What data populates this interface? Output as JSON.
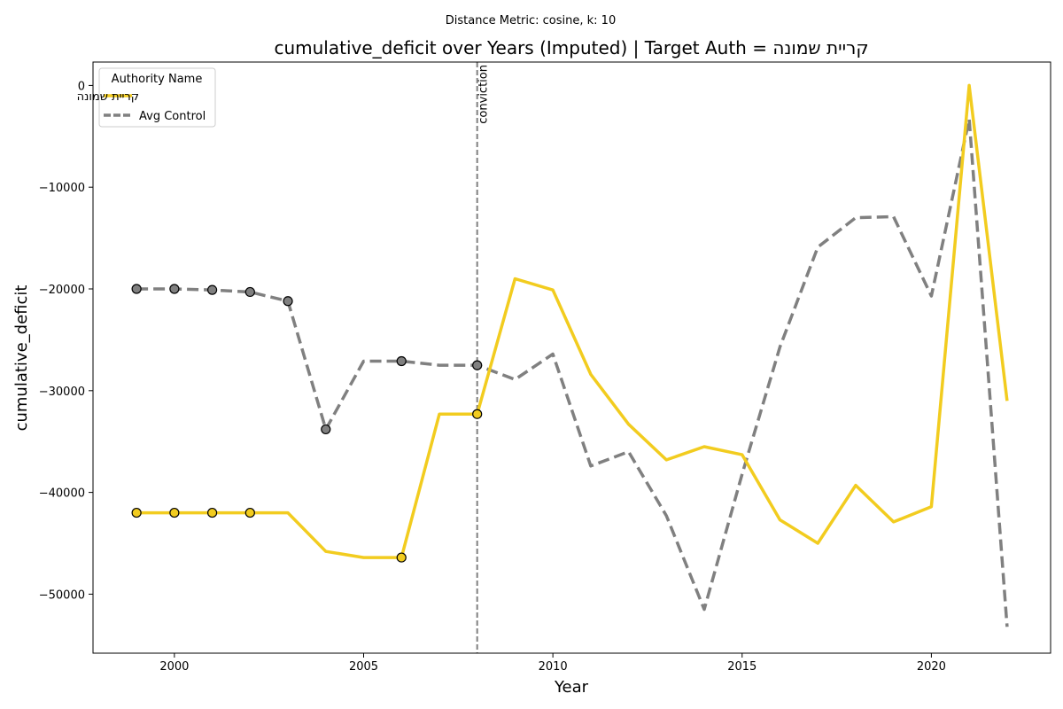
{
  "chart_data": {
    "type": "line",
    "suptitle": "Distance Metric: cosine, k: 10",
    "title": "cumulative_deficit over Years (Imputed) | Target Auth = קריית שמונה",
    "xlabel": "Year",
    "ylabel": "cumulative_deficit",
    "xlim": [
      1997.85,
      2023.15
    ],
    "ylim": [
      -55800,
      2300
    ],
    "xticks": [
      2000,
      2005,
      2010,
      2015,
      2020
    ],
    "yticks": [
      0,
      -10000,
      -20000,
      -30000,
      -40000,
      -50000
    ],
    "grid": false,
    "legend": {
      "title": "Authority Name",
      "position": "top-left"
    },
    "event_line": {
      "x": 2008,
      "label": "conviction"
    },
    "series": [
      {
        "name": "קריית שמונה",
        "color": "#f2cc1f",
        "style": "solid",
        "x": [
          1999,
          2000,
          2001,
          2002,
          2003,
          2004,
          2005,
          2006,
          2007,
          2008,
          2009,
          2010,
          2011,
          2012,
          2013,
          2014,
          2015,
          2016,
          2017,
          2018,
          2019,
          2020,
          2021,
          2022
        ],
        "y": [
          -42000,
          -42000,
          -42000,
          -42000,
          -42000,
          -45800,
          -46400,
          -46400,
          -32300,
          -32300,
          -19000,
          -20100,
          -28400,
          -33300,
          -36800,
          -35500,
          -36300,
          -42700,
          -45000,
          -39300,
          -42900,
          -41400,
          0,
          -31000
        ],
        "markers_x": [
          1999,
          2000,
          2001,
          2002,
          2006,
          2008
        ]
      },
      {
        "name": "Avg Control",
        "color": "#808080",
        "style": "dashed",
        "x": [
          1999,
          2000,
          2001,
          2002,
          2003,
          2004,
          2005,
          2006,
          2007,
          2008,
          2009,
          2010,
          2011,
          2012,
          2013,
          2014,
          2015,
          2016,
          2017,
          2018,
          2019,
          2020,
          2021,
          2022
        ],
        "y": [
          -20000,
          -20000,
          -20100,
          -20300,
          -21200,
          -33800,
          -27100,
          -27100,
          -27500,
          -27500,
          -28900,
          -26400,
          -37400,
          -36000,
          -42300,
          -51500,
          -38200,
          -25700,
          -15900,
          -13000,
          -12900,
          -20700,
          -3300,
          -53200
        ],
        "markers_x": [
          1999,
          2000,
          2001,
          2002,
          2003,
          2004,
          2006,
          2008
        ]
      }
    ]
  }
}
